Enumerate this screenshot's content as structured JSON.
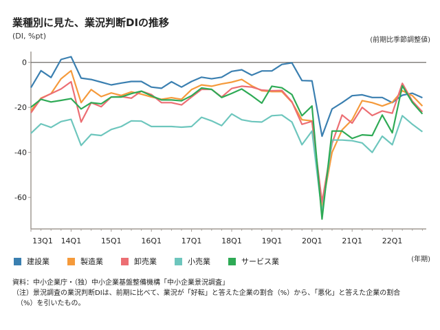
{
  "title": "業種別に見た、業況判断DIの推移",
  "unit_label": "(DI, %pt)",
  "adjust_label": "(前期比季節調整値)",
  "x_unit_label": "(年期)",
  "notes": [
    "資料：中小企業庁・（独）中小企業基盤整備機構「中小企業景況調査」",
    "（注）景況調査の業況判断DIは、前期に比べて、業況が「好転」と答えた企業の割合（%）から、「悪化」と答えた企業の割合",
    "（%）を引いたもの。"
  ],
  "chart_data": {
    "type": "line",
    "title": "業種別に見た、業況判断DIの推移",
    "ylabel": "DI, %pt",
    "xlabel": "年期",
    "ylim": [
      -74,
      4.8
    ],
    "yticks": [
      0,
      -20,
      -40,
      -60
    ],
    "x_start": "13Q1",
    "x_end": "22Q4",
    "xtick_labels": [
      "13Q1",
      "14Q1",
      "15Q1",
      "16Q1",
      "17Q1",
      "18Q1",
      "19Q1",
      "20Q1",
      "21Q1",
      "22Q1"
    ],
    "legend_position": "bottom",
    "series": [
      {
        "name": "建設業",
        "color": "#3a7fb0",
        "values": [
          -11.2,
          -3.7,
          -6.7,
          1.3,
          2.5,
          -7,
          -7.6,
          -8.8,
          -10,
          -9.2,
          -8.5,
          -8.5,
          -11,
          -11.5,
          -8.6,
          -11,
          -8.5,
          -6.6,
          -7.3,
          -6.6,
          -4,
          -3.3,
          -5.7,
          -3.8,
          -3.8,
          -0.9,
          -0.2,
          -8.1,
          -8.2,
          -32.8,
          -20.7,
          -17.9,
          -14.8,
          -14.4,
          -15.6,
          -15.6,
          -17.9,
          -14.6,
          -13.7,
          -15.7
        ]
      },
      {
        "name": "製造業",
        "color": "#f59a3b",
        "values": [
          -21.5,
          -15.9,
          -13.9,
          -7.3,
          -3.7,
          -17.9,
          -12.1,
          -15.2,
          -13.6,
          -14.7,
          -13.1,
          -14.1,
          -15.4,
          -16.4,
          -15.7,
          -16.4,
          -12.1,
          -10,
          -10.6,
          -9.6,
          -8.8,
          -7.6,
          -10.4,
          -12.6,
          -13,
          -13,
          -17.7,
          -25.5,
          -26,
          -64.3,
          -40,
          -30,
          -25.5,
          -17,
          -17.9,
          -19.4,
          -17.7,
          -12.6,
          -14.8,
          -19.4
        ]
      },
      {
        "name": "卸売業",
        "color": "#ec6e73",
        "values": [
          -22.4,
          -16.1,
          -13.9,
          -11.8,
          -8.6,
          -26.5,
          -17.9,
          -19.7,
          -15.4,
          -15.2,
          -15.9,
          -12.8,
          -14.3,
          -17.9,
          -17.9,
          -18.9,
          -15.4,
          -12,
          -12,
          -15.4,
          -11.6,
          -10.6,
          -11,
          -12.3,
          -12.6,
          -12.5,
          -17.5,
          -27.5,
          -26.2,
          -62,
          -36,
          -23.4,
          -27,
          -20,
          -23.6,
          -21.6,
          -22.6,
          -9.3,
          -17.2,
          -22
        ]
      },
      {
        "name": "小売業",
        "color": "#6dc6bd",
        "values": [
          -31.5,
          -27.3,
          -28.9,
          -26.3,
          -25.3,
          -36.9,
          -32,
          -32.5,
          -29.8,
          -28.5,
          -26,
          -26.1,
          -28.5,
          -28.5,
          -28.5,
          -28.8,
          -28.5,
          -24.4,
          -26,
          -28.1,
          -22.9,
          -25.5,
          -26.3,
          -26.5,
          -23.7,
          -23.4,
          -26.5,
          -36.6,
          -30.5,
          -67,
          -34.5,
          -34.5,
          -34.8,
          -35.8,
          -40,
          -32.8,
          -36.6,
          -23.7,
          -27.5,
          -30.8
        ]
      },
      {
        "name": "サービス業",
        "color": "#2eaa55",
        "values": [
          -19.9,
          -16.4,
          -17.6,
          -16.9,
          -16.1,
          -20.7,
          -17.9,
          -18.4,
          -15.4,
          -15.4,
          -13.9,
          -12.8,
          -14.8,
          -16.7,
          -16.7,
          -17.1,
          -14.8,
          -11.4,
          -12,
          -15.6,
          -13.8,
          -11.8,
          -14.8,
          -18.1,
          -10.6,
          -11.3,
          -14.3,
          -23.7,
          -19.4,
          -69.6,
          -30.5,
          -30.5,
          -33.8,
          -32.2,
          -32.5,
          -23.4,
          -31.3,
          -10.4,
          -17.8,
          -22.9
        ]
      }
    ]
  }
}
